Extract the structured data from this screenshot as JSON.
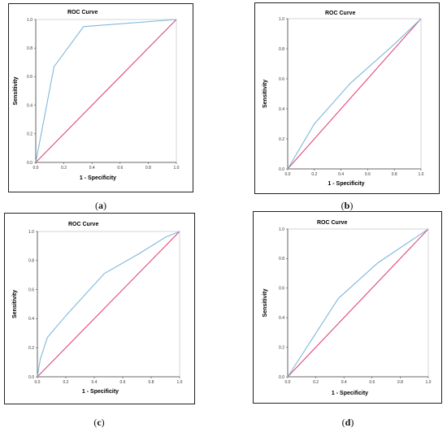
{
  "chart_data": [
    {
      "type": "line",
      "caption": "a",
      "title": "ROC Curve",
      "xlabel": "1 - Specificity",
      "ylabel": "Sensitivity",
      "xlim": [
        0,
        1
      ],
      "ylim": [
        0,
        1
      ],
      "xticks": [
        "0.0",
        "0.2",
        "0.4",
        "0.6",
        "0.8",
        "1.0"
      ],
      "yticks": [
        "0.0",
        "0.2",
        "0.4",
        "0.6",
        "0.8",
        "1.0"
      ],
      "series": [
        {
          "x": [
            0,
            0.13,
            0.34,
            1
          ],
          "y": [
            0,
            0.67,
            0.95,
            1
          ],
          "color": "#7fb8dc"
        },
        {
          "x": [
            0,
            1
          ],
          "y": [
            0,
            1
          ],
          "color": "#e0467a"
        }
      ]
    },
    {
      "type": "line",
      "caption": "b",
      "title": "ROC Curve",
      "xlabel": "1 - Specificity",
      "ylabel": "Sensitivity",
      "xlim": [
        0,
        1
      ],
      "ylim": [
        0,
        1
      ],
      "xticks": [
        "0.0",
        "0.2",
        "0.4",
        "0.6",
        "0.8",
        "1.0"
      ],
      "yticks": [
        "0.0",
        "0.2",
        "0.4",
        "0.6",
        "0.8",
        "1.0"
      ],
      "series": [
        {
          "x": [
            0,
            0.2,
            0.47,
            0.8,
            1
          ],
          "y": [
            0,
            0.3,
            0.57,
            0.83,
            1
          ],
          "color": "#7fb8dc"
        },
        {
          "x": [
            0,
            1
          ],
          "y": [
            0,
            1
          ],
          "color": "#e0467a"
        }
      ]
    },
    {
      "type": "line",
      "caption": "c",
      "title": "ROC Curve",
      "xlabel": "1 - Specificity",
      "ylabel": "Sensitivity",
      "xlim": [
        0,
        1
      ],
      "ylim": [
        0,
        1
      ],
      "xticks": [
        "0.0",
        "0.2",
        "0.4",
        "0.6",
        "0.8",
        "1.0"
      ],
      "yticks": [
        "0.0",
        "0.2",
        "0.4",
        "0.6",
        "0.8",
        "1.0"
      ],
      "series": [
        {
          "x": [
            0,
            0.02,
            0.07,
            0.2,
            0.47,
            0.72,
            0.9,
            1
          ],
          "y": [
            0,
            0.12,
            0.27,
            0.42,
            0.71,
            0.85,
            0.96,
            1
          ],
          "color": "#7fb8dc"
        },
        {
          "x": [
            0,
            1
          ],
          "y": [
            0,
            1
          ],
          "color": "#e0467a"
        }
      ]
    },
    {
      "type": "line",
      "caption": "d",
      "title": "ROC Curve",
      "xlabel": "1 - Specificity",
      "ylabel": "Sensitivity",
      "xlim": [
        0,
        1
      ],
      "ylim": [
        0,
        1
      ],
      "xticks": [
        "0.0",
        "0.2",
        "0.4",
        "0.6",
        "0.8",
        "1.0"
      ],
      "yticks": [
        "0.0",
        "0.2",
        "0.4",
        "0.6",
        "0.8",
        "1.0"
      ],
      "series": [
        {
          "x": [
            0,
            0.36,
            0.64,
            1
          ],
          "y": [
            0,
            0.53,
            0.77,
            1
          ],
          "color": "#7fb8dc"
        },
        {
          "x": [
            0,
            1
          ],
          "y": [
            0,
            1
          ],
          "color": "#e0467a"
        }
      ]
    }
  ]
}
